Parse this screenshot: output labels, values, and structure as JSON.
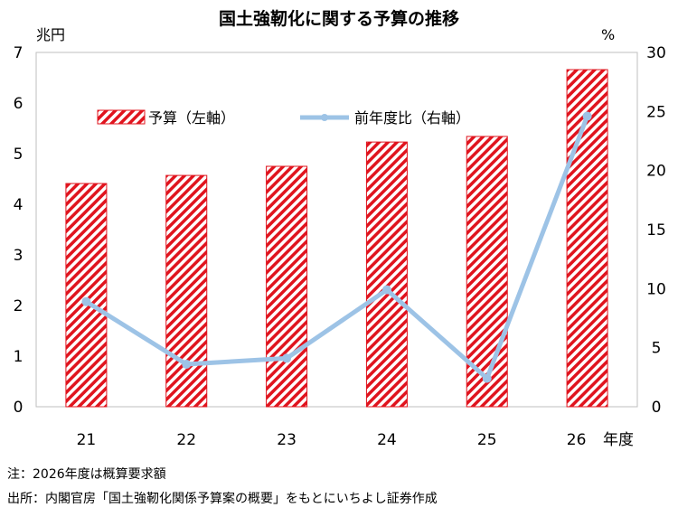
{
  "chart_data": {
    "type": "bar",
    "title": "国土強靭化に関する予算の推移",
    "categories": [
      "21",
      "22",
      "23",
      "24",
      "25",
      "26"
    ],
    "xlabel": "年度",
    "ylabel": "兆円",
    "y2label": "%",
    "ylim": [
      0,
      7
    ],
    "y2lim": [
      0,
      30
    ],
    "yticks": [
      "0",
      "1",
      "2",
      "3",
      "4",
      "5",
      "6",
      "7"
    ],
    "y2ticks": [
      "0",
      "5",
      "10",
      "15",
      "20",
      "25",
      "30"
    ],
    "grid": false,
    "legend_position": "top",
    "series": [
      {
        "name": "予算（左軸）",
        "type": "bar",
        "axis": "left",
        "color": "#e0141e",
        "values": [
          4.41,
          4.57,
          4.75,
          5.23,
          5.34,
          6.66
        ]
      },
      {
        "name": "前年度比（右軸）",
        "type": "line",
        "axis": "right",
        "color": "#9dc3e6",
        "values": [
          8.9,
          3.6,
          4.1,
          9.9,
          2.4,
          24.6
        ]
      }
    ]
  },
  "notes": {
    "note": "注：2026年度は概算要求額",
    "source": "出所：内閣官房「国土強靭化関係予算案の概要」をもとにいちよし証券作成"
  }
}
